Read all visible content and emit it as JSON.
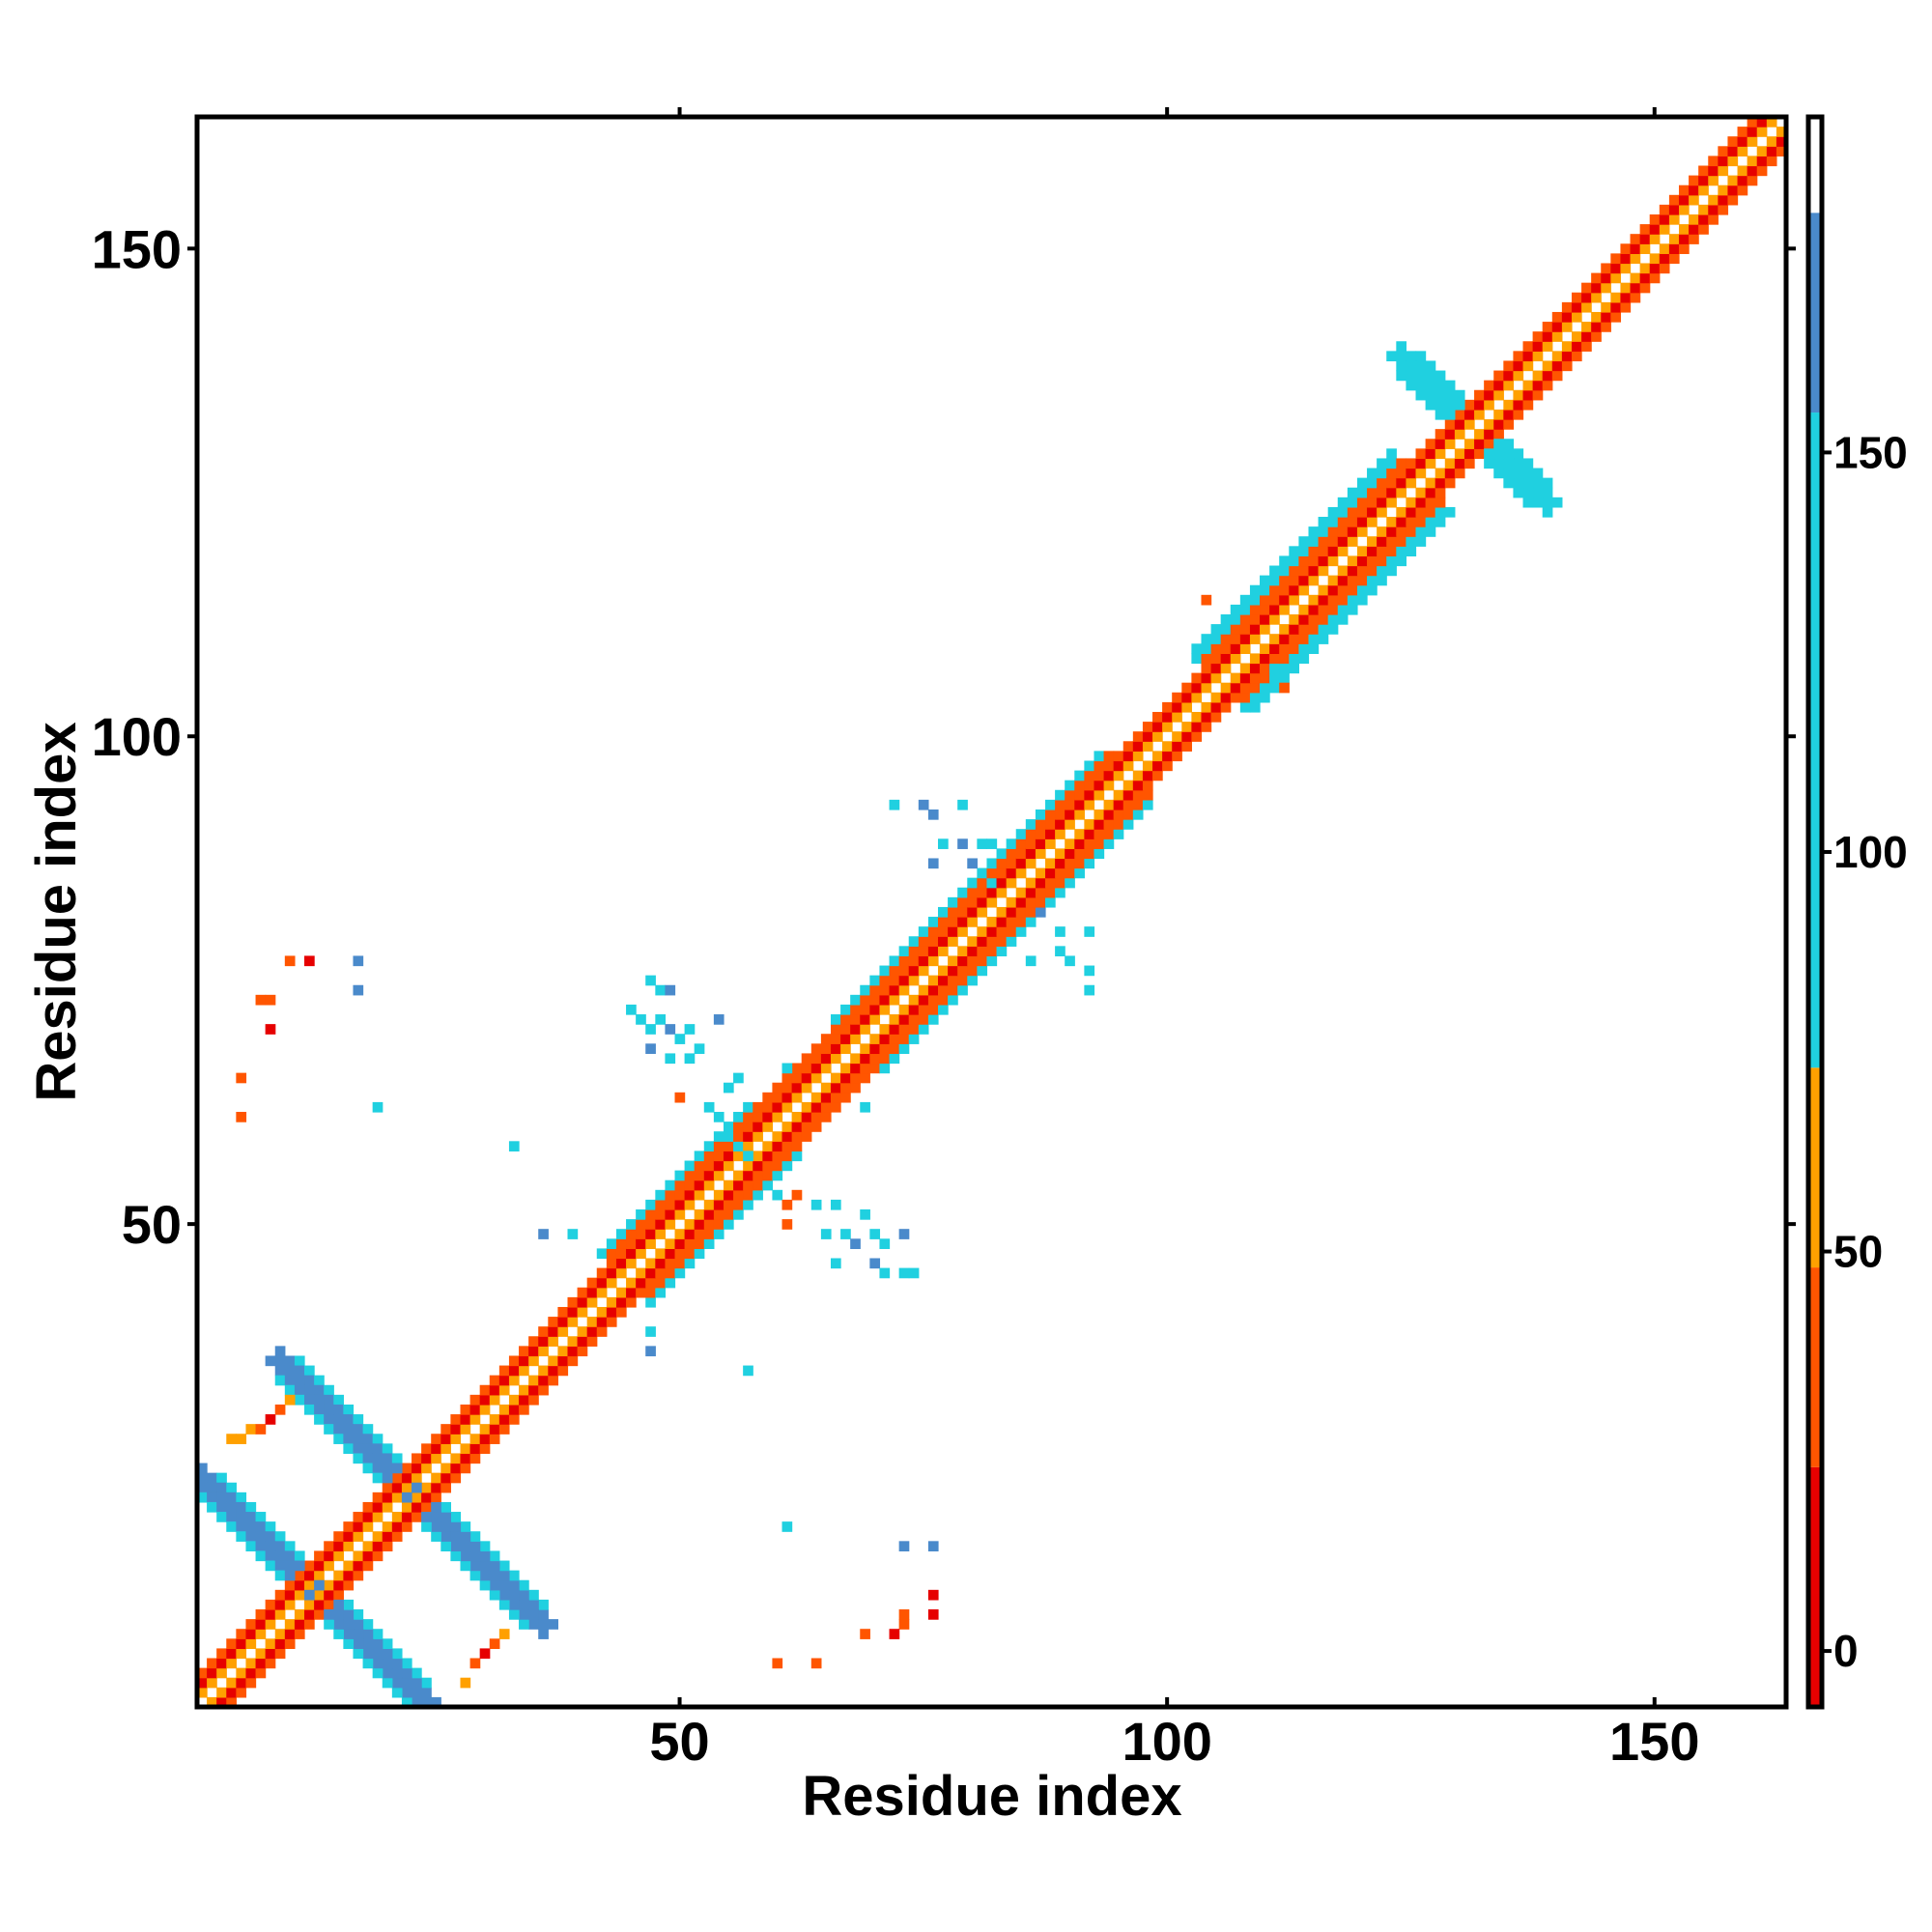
{
  "chart_data": {
    "type": "heatmap",
    "title": "",
    "xlabel": "Residue index",
    "ylabel": "Residue index",
    "xlim": [
      0.5,
      163.5
    ],
    "ylim": [
      0.5,
      163.5
    ],
    "x_ticks": [
      50,
      100,
      150
    ],
    "y_ticks": [
      50,
      100,
      150
    ],
    "x_tick_labels": [
      "50",
      "100",
      "150"
    ],
    "y_tick_labels": [
      "50",
      "100",
      "150"
    ],
    "grid": false,
    "colorbar": {
      "range": [
        -7,
        192
      ],
      "ticks": [
        0,
        50,
        100,
        150
      ],
      "tick_labels": [
        "0",
        "50",
        "100",
        "150"
      ],
      "bins": [
        {
          "from": -7,
          "to": 23,
          "color": "#E60000"
        },
        {
          "from": 23,
          "to": 48,
          "color": "#FF5500"
        },
        {
          "from": 48,
          "to": 73,
          "color": "#FFA000"
        },
        {
          "from": 73,
          "to": 155,
          "color": "#20D0E0"
        },
        {
          "from": 155,
          "to": 180,
          "color": "#4A8ACB"
        },
        {
          "from": 180,
          "to": 192,
          "color": "#FFFFFF"
        }
      ]
    },
    "band_pattern": [
      {
        "offset": 1,
        "value": 60
      },
      {
        "offset": 2,
        "value": 5
      },
      {
        "offset": 3,
        "value": 35
      },
      {
        "offset": 4,
        "value": 40
      },
      {
        "offset": 5,
        "value": 100
      }
    ],
    "diagonal_segments": [
      {
        "from": 1,
        "to": 24,
        "width": 3
      },
      {
        "from": 24,
        "to": 44,
        "width": 3
      },
      {
        "from": 44,
        "to": 60,
        "width": 5
      },
      {
        "from": 60,
        "to": 68,
        "width": 4
      },
      {
        "from": 68,
        "to": 82,
        "width": 5
      },
      {
        "from": 82,
        "to": 96,
        "width": 5
      },
      {
        "from": 96,
        "to": 105,
        "width": 3
      },
      {
        "from": 105,
        "to": 126,
        "width": 6
      },
      {
        "from": 126,
        "to": 140,
        "width": 3
      },
      {
        "from": 140,
        "to": 163,
        "width": 3
      }
    ],
    "antiparallel_contacts": [
      {
        "i": 1,
        "j": 24,
        "length": 20,
        "value": 165,
        "halo": 100
      },
      {
        "i": 9,
        "j": 36,
        "length": 14,
        "value": 165,
        "halo": 100
      },
      {
        "i": 124,
        "j": 139,
        "length": 6,
        "value": 105,
        "halo": 100
      }
    ],
    "scattered_contacts": [
      {
        "x": 4,
        "y": 28,
        "v": 60
      },
      {
        "x": 5,
        "y": 28,
        "v": 60
      },
      {
        "x": 6,
        "y": 29,
        "v": 60
      },
      {
        "x": 7,
        "y": 29,
        "v": 35
      },
      {
        "x": 8,
        "y": 30,
        "v": 5
      },
      {
        "x": 9,
        "y": 31,
        "v": 35
      },
      {
        "x": 10,
        "y": 32,
        "v": 60
      },
      {
        "x": 28,
        "y": 3,
        "v": 60
      },
      {
        "x": 29,
        "y": 5,
        "v": 35
      },
      {
        "x": 30,
        "y": 6,
        "v": 5
      },
      {
        "x": 31,
        "y": 7,
        "v": 35
      },
      {
        "x": 32,
        "y": 8,
        "v": 60
      },
      {
        "x": 10,
        "y": 77,
        "v": 35
      },
      {
        "x": 12,
        "y": 77,
        "v": 5
      },
      {
        "x": 7,
        "y": 73,
        "v": 40
      },
      {
        "x": 8,
        "y": 73,
        "v": 40
      },
      {
        "x": 8,
        "y": 70,
        "v": 5
      },
      {
        "x": 5,
        "y": 65,
        "v": 40
      },
      {
        "x": 5,
        "y": 61,
        "v": 35
      },
      {
        "x": 17,
        "y": 77,
        "v": 165
      },
      {
        "x": 17,
        "y": 74,
        "v": 165
      },
      {
        "x": 19,
        "y": 62,
        "v": 100
      },
      {
        "x": 33,
        "y": 58,
        "v": 100
      },
      {
        "x": 36,
        "y": 49,
        "v": 165
      },
      {
        "x": 39,
        "y": 49,
        "v": 100
      },
      {
        "x": 47,
        "y": 75,
        "v": 100
      },
      {
        "x": 48,
        "y": 74,
        "v": 100
      },
      {
        "x": 49,
        "y": 74,
        "v": 165
      },
      {
        "x": 45,
        "y": 72,
        "v": 100
      },
      {
        "x": 46,
        "y": 71,
        "v": 100
      },
      {
        "x": 47,
        "y": 70,
        "v": 100
      },
      {
        "x": 48,
        "y": 71,
        "v": 100
      },
      {
        "x": 49,
        "y": 70,
        "v": 165
      },
      {
        "x": 50,
        "y": 69,
        "v": 100
      },
      {
        "x": 51,
        "y": 70,
        "v": 100
      },
      {
        "x": 47,
        "y": 68,
        "v": 165
      },
      {
        "x": 49,
        "y": 67,
        "v": 100
      },
      {
        "x": 54,
        "y": 71,
        "v": 165
      },
      {
        "x": 52,
        "y": 68,
        "v": 100
      },
      {
        "x": 51,
        "y": 67,
        "v": 100
      },
      {
        "x": 56,
        "y": 65,
        "v": 100
      },
      {
        "x": 55,
        "y": 64,
        "v": 100
      },
      {
        "x": 50,
        "y": 63,
        "v": 40
      },
      {
        "x": 53,
        "y": 62,
        "v": 100
      },
      {
        "x": 54,
        "y": 61,
        "v": 100
      },
      {
        "x": 55,
        "y": 59,
        "v": 100
      },
      {
        "x": 56,
        "y": 58,
        "v": 100
      },
      {
        "x": 57,
        "y": 57,
        "v": 100
      },
      {
        "x": 60,
        "y": 53,
        "v": 100
      },
      {
        "x": 61,
        "y": 52,
        "v": 40
      },
      {
        "x": 62,
        "y": 53,
        "v": 35
      },
      {
        "x": 64,
        "y": 52,
        "v": 100
      },
      {
        "x": 66,
        "y": 52,
        "v": 100
      },
      {
        "x": 61,
        "y": 50,
        "v": 40
      },
      {
        "x": 65,
        "y": 49,
        "v": 100
      },
      {
        "x": 67,
        "y": 49,
        "v": 100
      },
      {
        "x": 68,
        "y": 48,
        "v": 165
      },
      {
        "x": 70,
        "y": 49,
        "v": 100
      },
      {
        "x": 71,
        "y": 48,
        "v": 100
      },
      {
        "x": 73,
        "y": 49,
        "v": 165
      },
      {
        "x": 66,
        "y": 46,
        "v": 100
      },
      {
        "x": 70,
        "y": 46,
        "v": 165
      },
      {
        "x": 71,
        "y": 45,
        "v": 100
      },
      {
        "x": 73,
        "y": 45,
        "v": 100
      },
      {
        "x": 74,
        "y": 45,
        "v": 100
      },
      {
        "x": 69,
        "y": 51,
        "v": 100
      },
      {
        "x": 62,
        "y": 57,
        "v": 100
      },
      {
        "x": 61,
        "y": 66,
        "v": 100
      },
      {
        "x": 69,
        "y": 62,
        "v": 100
      },
      {
        "x": 47,
        "y": 39,
        "v": 100
      },
      {
        "x": 47,
        "y": 37,
        "v": 165
      },
      {
        "x": 57,
        "y": 35,
        "v": 100
      },
      {
        "x": 61,
        "y": 19,
        "v": 100
      },
      {
        "x": 73,
        "y": 17,
        "v": 165
      },
      {
        "x": 76,
        "y": 17,
        "v": 165
      },
      {
        "x": 76,
        "y": 12,
        "v": 5
      },
      {
        "x": 76,
        "y": 10,
        "v": 5
      },
      {
        "x": 73,
        "y": 10,
        "v": 40
      },
      {
        "x": 73,
        "y": 9,
        "v": 40
      },
      {
        "x": 72,
        "y": 8,
        "v": 5
      },
      {
        "x": 69,
        "y": 8,
        "v": 35
      },
      {
        "x": 60,
        "y": 5,
        "v": 40
      },
      {
        "x": 64,
        "y": 5,
        "v": 35
      },
      {
        "x": 72,
        "y": 93,
        "v": 100
      },
      {
        "x": 75,
        "y": 93,
        "v": 165
      },
      {
        "x": 76,
        "y": 92,
        "v": 165
      },
      {
        "x": 79,
        "y": 93,
        "v": 100
      },
      {
        "x": 77,
        "y": 89,
        "v": 100
      },
      {
        "x": 79,
        "y": 89,
        "v": 165
      },
      {
        "x": 81,
        "y": 89,
        "v": 100
      },
      {
        "x": 82,
        "y": 89,
        "v": 100
      },
      {
        "x": 80,
        "y": 87,
        "v": 165
      },
      {
        "x": 76,
        "y": 87,
        "v": 165
      },
      {
        "x": 82,
        "y": 85,
        "v": 100
      },
      {
        "x": 87,
        "y": 82,
        "v": 165
      },
      {
        "x": 89,
        "y": 80,
        "v": 100
      },
      {
        "x": 92,
        "y": 80,
        "v": 100
      },
      {
        "x": 89,
        "y": 78,
        "v": 100
      },
      {
        "x": 86,
        "y": 77,
        "v": 100
      },
      {
        "x": 90,
        "y": 77,
        "v": 100
      },
      {
        "x": 92,
        "y": 76,
        "v": 100
      },
      {
        "x": 92,
        "y": 74,
        "v": 100
      },
      {
        "x": 104,
        "y": 114,
        "v": 40
      },
      {
        "x": 112,
        "y": 105,
        "v": 40
      },
      {
        "x": 111,
        "y": 107,
        "v": 100
      }
    ]
  }
}
